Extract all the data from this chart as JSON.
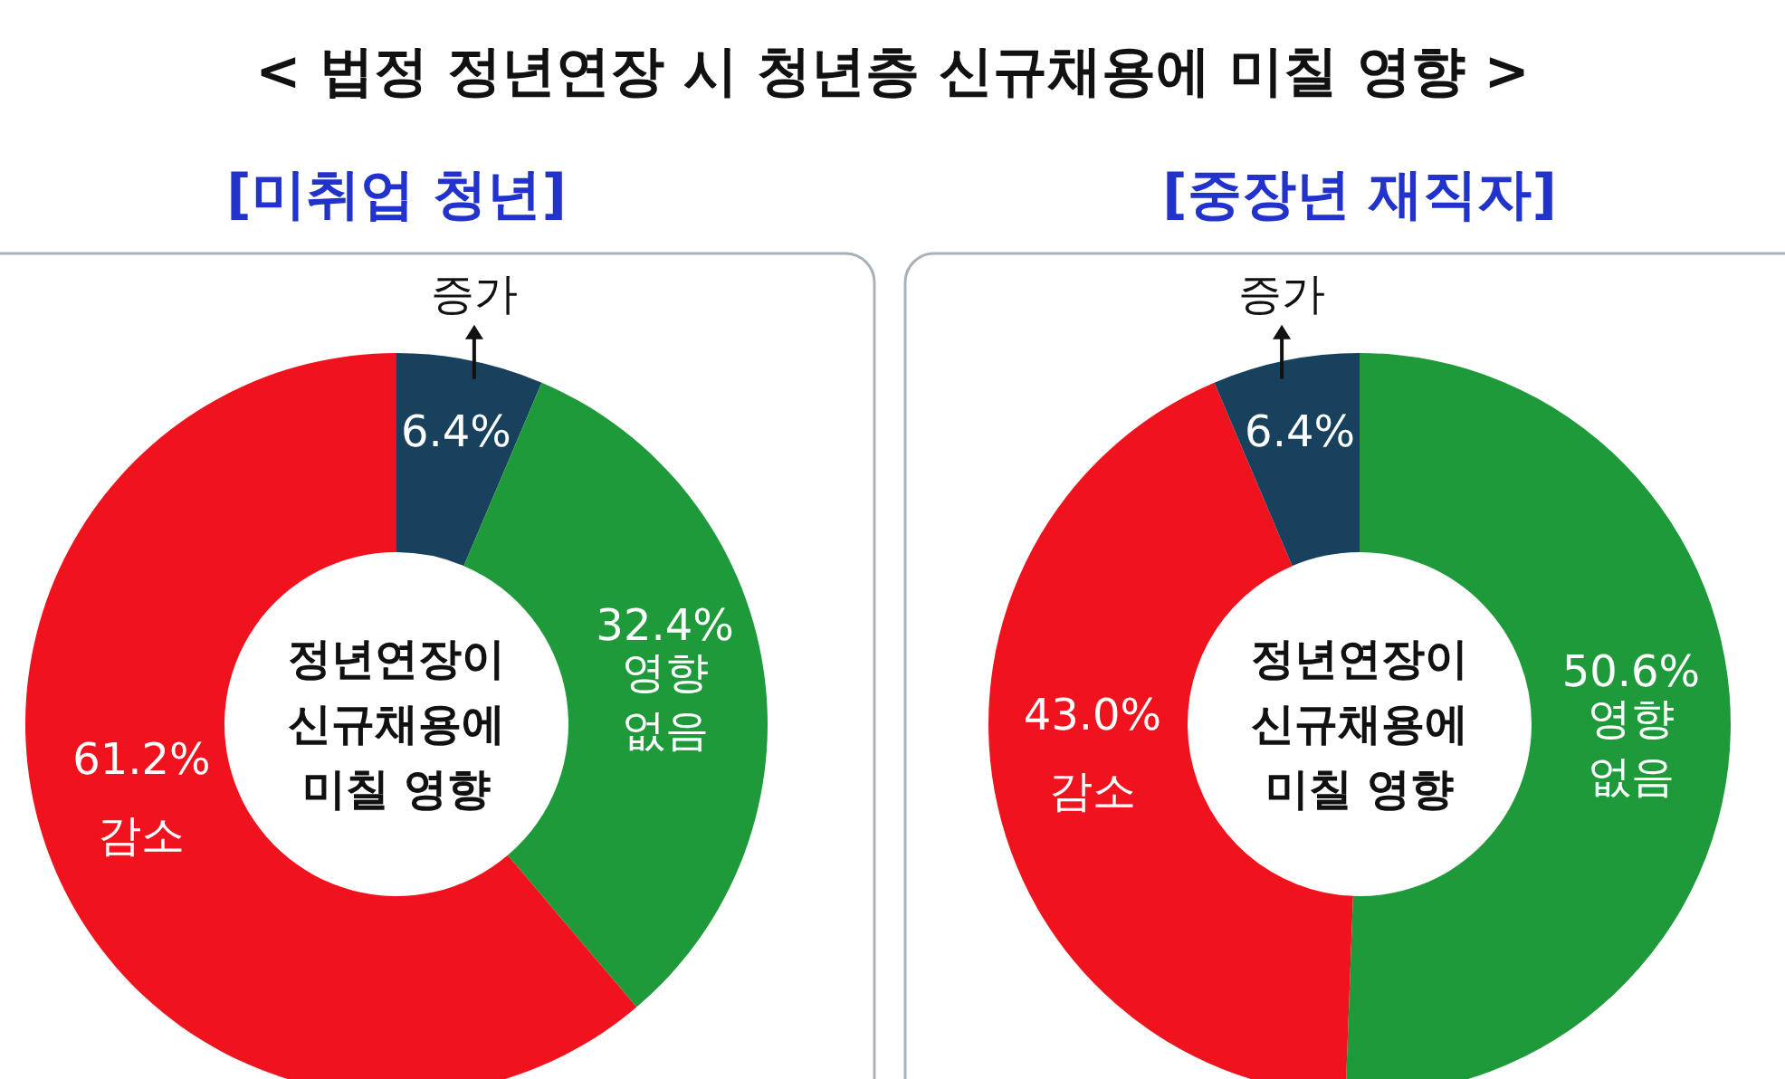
{
  "chart_data": [
    {
      "type": "donut",
      "title": "< 법정 정년연장 시 청년층 신규채용에 미칠 영향 >",
      "subtitle": "[미취업 청년]",
      "categories": [
        "증가",
        "영향 없음",
        "감소"
      ],
      "values": [
        6.4,
        32.4,
        61.2
      ],
      "value_labels": [
        "6.4%",
        "32.4%",
        "61.2%"
      ],
      "colors": [
        "#17415c",
        "#1f9a3b",
        "#f0121c"
      ],
      "annotations": [
        "정년연장이 신규채용에 미칠 영향"
      ]
    },
    {
      "type": "donut",
      "title": "[중장년 재직자]",
      "categories": [
        "영향 없음",
        "감소",
        "증가"
      ],
      "values": [
        50.6,
        43.0,
        6.4
      ],
      "value_labels": [
        "50.6%",
        "43.0%",
        "6.4%"
      ],
      "colors": [
        "#1f9a3b",
        "#f0121c",
        "#17415c"
      ],
      "annotations": [
        "정년연장이 신규채용에 미칠 영향"
      ]
    }
  ]
}
